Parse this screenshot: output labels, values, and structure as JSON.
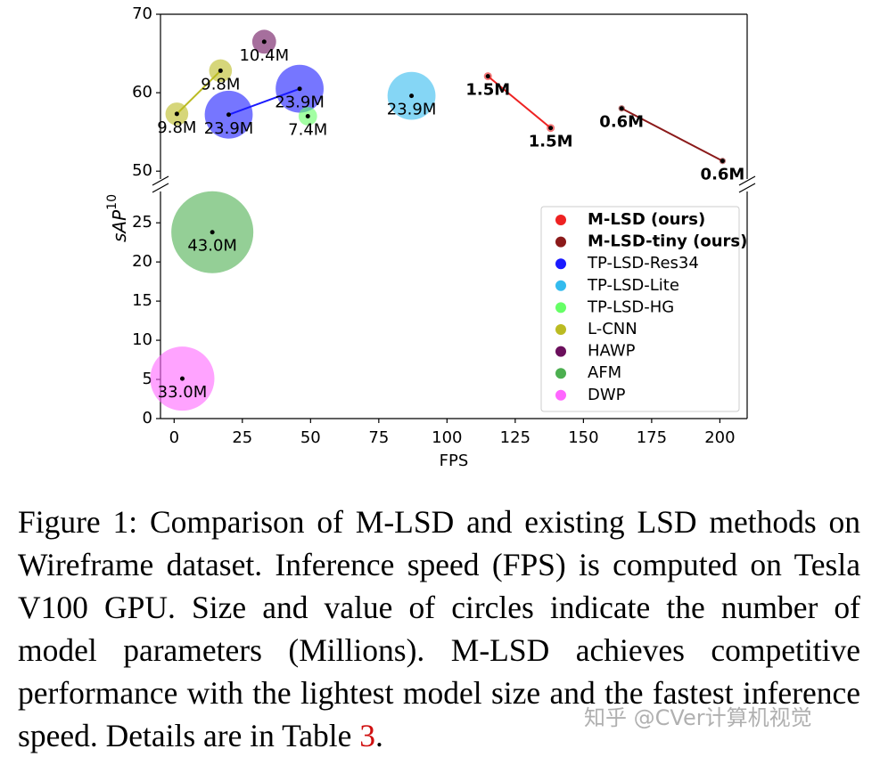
{
  "chart_data": {
    "type": "scatter",
    "x_label": "FPS",
    "y_label": "sAP",
    "y_label_sup": "10",
    "xlim": [
      -5,
      210
    ],
    "xticks": [
      0,
      25,
      50,
      75,
      100,
      125,
      150,
      175,
      200
    ],
    "ylim": [
      0,
      70
    ],
    "ybreak": [
      29,
      49
    ],
    "yticks": [
      0,
      5,
      10,
      15,
      20,
      25,
      50,
      60,
      70
    ],
    "series": [
      {
        "name": "M-LSD (ours)",
        "color": "#ee2222",
        "bold": true,
        "x": [
          115,
          138
        ],
        "values": [
          62.1,
          55.5
        ],
        "sizes": [
          1.5,
          1.5
        ],
        "value_labels": [
          "1.5M",
          "1.5M"
        ]
      },
      {
        "name": "M-LSD-tiny (ours)",
        "color": "#8b1a1a",
        "bold": true,
        "x": [
          164,
          201
        ],
        "values": [
          58,
          51.3
        ],
        "sizes": [
          0.6,
          0.6
        ],
        "value_labels": [
          "0.6M",
          "0.6M"
        ]
      },
      {
        "name": "TP-LSD-Res34",
        "color": "#1a1aff",
        "x": [
          20,
          46
        ],
        "values": [
          57.2,
          60.5
        ],
        "sizes": [
          23.9,
          23.9
        ],
        "value_labels": [
          "23.9M",
          "23.9M"
        ]
      },
      {
        "name": "TP-LSD-Lite",
        "color": "#33bbee",
        "x": [
          87
        ],
        "values": [
          59.6
        ],
        "sizes": [
          23.9
        ],
        "value_labels": [
          "23.9M"
        ]
      },
      {
        "name": "TP-LSD-HG",
        "color": "#66ff66",
        "x": [
          49
        ],
        "values": [
          57
        ],
        "sizes": [
          7.4
        ],
        "value_labels": [
          "7.4M"
        ]
      },
      {
        "name": "L-CNN",
        "color": "#bbbb22",
        "x": [
          1,
          17
        ],
        "values": [
          57.3,
          62.8
        ],
        "sizes": [
          9.8,
          9.8
        ],
        "value_labels": [
          "9.8M",
          "9.8M"
        ]
      },
      {
        "name": "HAWP",
        "color": "#6b0f5c",
        "x": [
          33
        ],
        "values": [
          66.5
        ],
        "sizes": [
          10.4
        ],
        "value_labels": [
          "10.4M"
        ]
      },
      {
        "name": "AFM",
        "color": "#4caf50",
        "x": [
          14
        ],
        "values": [
          23.8
        ],
        "sizes": [
          43.0
        ],
        "value_labels": [
          "43.0M"
        ]
      },
      {
        "name": "DWP",
        "color": "#ff66ff",
        "x": [
          3
        ],
        "values": [
          5.1
        ],
        "sizes": [
          33.0
        ],
        "value_labels": [
          "33.0M"
        ]
      }
    ]
  },
  "caption": {
    "text": "Figure 1: Comparison of M-LSD and existing LSD methods on Wireframe dataset. Inference speed (FPS) is computed on Tesla V100 GPU. Size and value of circles indicate the number of model parameters (Millions). M-LSD achieves competitive performance with the lightest model size and the fastest inference speed. Details are in Table ",
    "ref": "3",
    "end": "."
  },
  "watermark": "知乎 @CVer计算机视觉"
}
